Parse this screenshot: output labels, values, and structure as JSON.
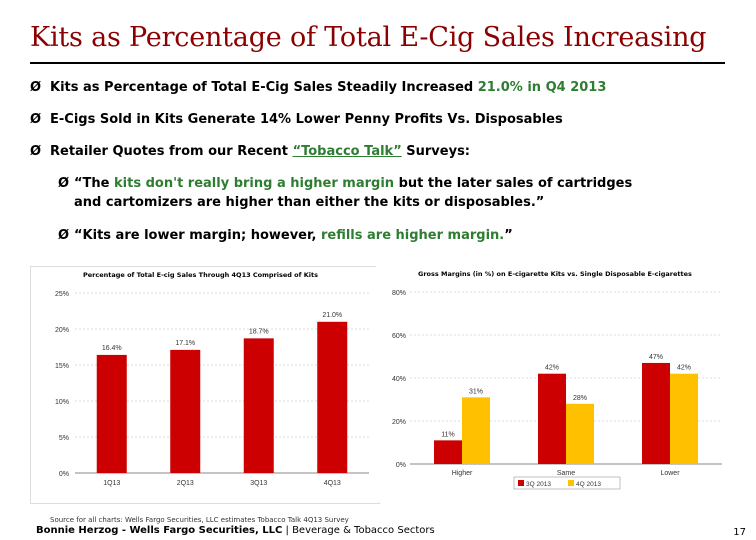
{
  "slide": {
    "title": "Kits as Percentage of Total E-Cig Sales Increasing",
    "bullets": [
      {
        "pre": "Kits as Percentage of Total E-Cig Sales Steadily Increased ",
        "hl": "21.0% in Q4 2013"
      },
      {
        "text": "E-Cigs Sold in Kits Generate 14% Lower Penny Profits Vs. Disposables"
      },
      {
        "pre": "Retailer Quotes from our Recent ",
        "hl": "“Tobacco Talk”",
        "post": " Surveys:"
      }
    ],
    "quotes": [
      {
        "a": "“The ",
        "b": "kits don't really bring a higher margin",
        "c": " but the later sales of cartridges",
        "line2": "and cartomizers are higher than either the kits or disposables.”"
      },
      {
        "a": "“Kits are lower margin; however, ",
        "b": "refills are higher margin.",
        "c": "”"
      }
    ],
    "arrow_glyph": "Ø",
    "source": "Source for all charts: Wells Fargo Securities, LLC estimates Tobacco Talk 4Q13 Survey",
    "footer_bold": "Bonnie Herzog - Wells Fargo Securities, LLC",
    "footer_rest": " | Beverage & Tobacco Sectors",
    "page_number": "17"
  },
  "colors": {
    "title": "#8b0000",
    "bar_red": "#cc0000",
    "bar_yellow": "#ffc000",
    "highlight": "#2e7d32"
  },
  "chart_data": [
    {
      "type": "bar",
      "title": "Percentage of Total E-cig Sales Through 4Q13 Comprised of Kits",
      "categories": [
        "1Q13",
        "2Q13",
        "3Q13",
        "4Q13"
      ],
      "values": [
        16.4,
        17.1,
        18.7,
        21.0
      ],
      "data_labels": [
        "16.4%",
        "17.1%",
        "18.7%",
        "21.0%"
      ],
      "ylim": [
        0,
        25
      ],
      "yticks": [
        0,
        5,
        10,
        15,
        20,
        25
      ],
      "ytick_labels": [
        "0%",
        "5%",
        "10%",
        "15%",
        "20%",
        "25%"
      ],
      "color": "#cc0000",
      "grid": true
    },
    {
      "type": "bar",
      "title": "Gross Margins (in %) on E-cigarette Kits vs. Single Disposable E-cigarettes",
      "categories": [
        "Higher",
        "Same",
        "Lower"
      ],
      "series": [
        {
          "name": "3Q 2013",
          "values": [
            11,
            42,
            47
          ],
          "labels": [
            "11%",
            "42%",
            "47%"
          ],
          "color": "#cc0000"
        },
        {
          "name": "4Q 2013",
          "values": [
            31,
            28,
            42
          ],
          "labels": [
            "31%",
            "28%",
            "42%"
          ],
          "color": "#ffc000"
        }
      ],
      "ylim": [
        0,
        80
      ],
      "yticks": [
        0,
        20,
        40,
        60,
        80
      ],
      "ytick_labels": [
        "0%",
        "20%",
        "40%",
        "60%",
        "80%"
      ],
      "legend": "bottom",
      "grid": true
    }
  ]
}
